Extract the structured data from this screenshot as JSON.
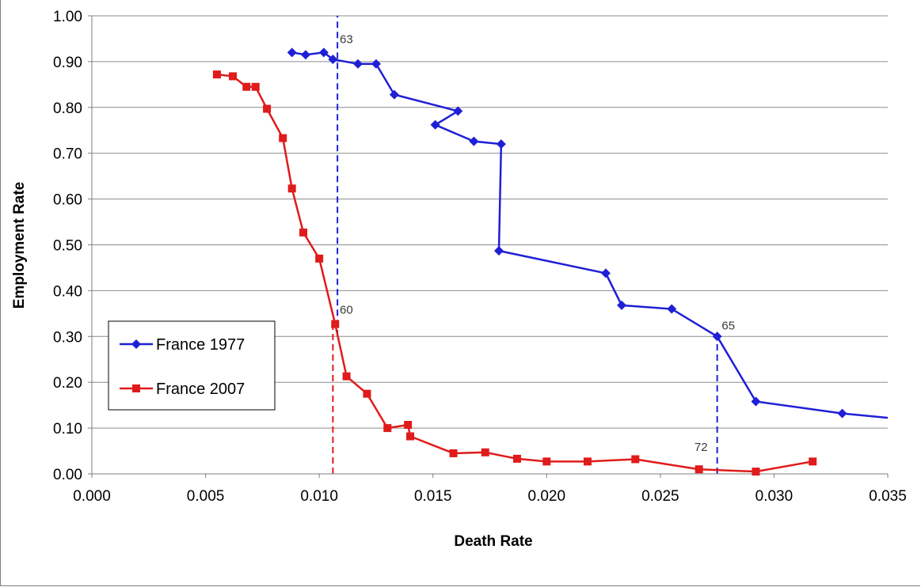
{
  "chart_data": {
    "type": "line",
    "title": "",
    "xlabel": "Death Rate",
    "ylabel": "Employment Rate",
    "xlim": [
      0.0,
      0.035
    ],
    "ylim": [
      0.0,
      1.0
    ],
    "x_ticks": [
      "0.000",
      "0.005",
      "0.010",
      "0.015",
      "0.020",
      "0.025",
      "0.030",
      "0.035"
    ],
    "y_ticks": [
      "0.00",
      "0.10",
      "0.20",
      "0.30",
      "0.40",
      "0.50",
      "0.60",
      "0.70",
      "0.80",
      "0.90",
      "1.00"
    ],
    "grid": "horizontal",
    "legend_position": "left",
    "series": [
      {
        "name": "France 1977",
        "color": "#1f1fd6",
        "marker": "diamond",
        "x": [
          0.0088,
          0.0094,
          0.0102,
          0.0106,
          0.0117,
          0.0125,
          0.0133,
          0.0161,
          0.0151,
          0.0168,
          0.018,
          0.0179,
          0.0226,
          0.0233,
          0.0255,
          0.0275,
          0.0292,
          0.033,
          0.0355
        ],
        "y": [
          0.92,
          0.915,
          0.92,
          0.905,
          0.895,
          0.895,
          0.828,
          0.792,
          0.762,
          0.726,
          0.72,
          0.487,
          0.438,
          0.368,
          0.36,
          0.3,
          0.158,
          0.132,
          0.12
        ]
      },
      {
        "name": "France 2007",
        "color": "#e01b1b",
        "marker": "square",
        "x": [
          0.0055,
          0.0062,
          0.0068,
          0.0072,
          0.0077,
          0.0084,
          0.0088,
          0.0093,
          0.01,
          0.0107,
          0.0112,
          0.0121,
          0.013,
          0.0139,
          0.014,
          0.0159,
          0.0173,
          0.0187,
          0.02,
          0.0218,
          0.0239,
          0.0267,
          0.0292,
          0.0317
        ],
        "y": [
          0.872,
          0.868,
          0.845,
          0.845,
          0.797,
          0.733,
          0.623,
          0.527,
          0.47,
          0.327,
          0.213,
          0.175,
          0.1,
          0.107,
          0.082,
          0.045,
          0.047,
          0.033,
          0.027,
          0.027,
          0.032,
          0.01,
          0.005,
          0.027
        ]
      }
    ],
    "reference_lines": [
      {
        "x": 0.0108,
        "y_from": 0.3,
        "y_to": 1.0,
        "color": "#1f1fd6"
      },
      {
        "x": 0.0106,
        "y_from": 0.0,
        "y_to": 0.327,
        "color": "#e01b1b"
      },
      {
        "x": 0.0275,
        "y_from": 0.0,
        "y_to": 0.3,
        "color": "#1f1fd6"
      }
    ],
    "annotations": [
      {
        "text": "63",
        "x": 0.0109,
        "y": 0.94
      },
      {
        "text": "60",
        "x": 0.0109,
        "y": 0.35
      },
      {
        "text": "65",
        "x": 0.0277,
        "y": 0.315
      },
      {
        "text": "72",
        "x": 0.0265,
        "y": 0.05
      }
    ]
  }
}
